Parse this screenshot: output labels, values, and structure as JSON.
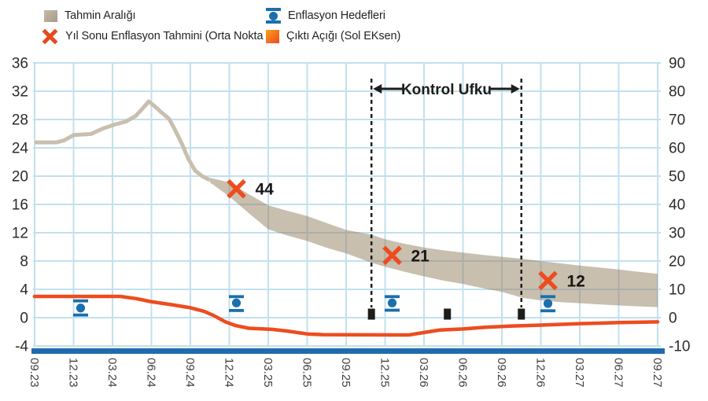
{
  "legend": {
    "items": [
      {
        "id": "forecast-range",
        "label": "Tahmin Aralığı"
      },
      {
        "id": "inflation-targets",
        "label": "Enflasyon Hedefleri"
      },
      {
        "id": "year-end-forecast",
        "label": "Yıl Sonu Enflasyon Tahmini (Orta Nokta"
      },
      {
        "id": "output-gap",
        "label": "Çıktı Açığı (Sol EKsen)"
      }
    ]
  },
  "colors": {
    "band": "#c9bfae",
    "orange": "#ee4c1e",
    "blue": "#1b6fad",
    "grid": "#c2e0ee",
    "grid_over_band": "#8b9aa4",
    "bottom_axis": "#1e6cae",
    "black": "#1d1d1b",
    "tick_text": "#403f3e",
    "axis_text": "#2c2b2a"
  },
  "chart_data": {
    "type": "area",
    "title": "",
    "grid": true,
    "legend_position": "top",
    "x_labels": [
      "09.23",
      "12.23",
      "03.24",
      "06.24",
      "09.24",
      "12.24",
      "03.25",
      "06.25",
      "09.25",
      "12.25",
      "03.26",
      "06.26",
      "09.26",
      "12.26",
      "03.27",
      "06.27",
      "09.27"
    ],
    "left_axis": {
      "ticks": [
        36,
        32,
        28,
        24,
        20,
        16,
        12,
        8,
        4,
        0,
        -4
      ],
      "min": -4,
      "max": 36
    },
    "right_axis": {
      "ticks": [
        90,
        80,
        70,
        60,
        50,
        40,
        30,
        20,
        10,
        0,
        -10
      ],
      "min": -10,
      "max": 90
    },
    "control_horizon": {
      "label": "Kontrol Ufku",
      "from_x_index": 8.65,
      "to_x_index": 12.5
    },
    "series": [
      {
        "name": "Tahmin Aralığı",
        "kind": "band",
        "axis": "right",
        "line_points": [
          [
            0,
            61.9
          ],
          [
            0.55,
            61.9
          ],
          [
            0.75,
            62.6
          ],
          [
            1,
            64.5
          ],
          [
            1.45,
            64.9
          ],
          [
            1.75,
            66.8
          ],
          [
            2.05,
            68.2
          ],
          [
            2.35,
            69.3
          ],
          [
            2.6,
            71.3
          ],
          [
            2.78,
            74.0
          ],
          [
            2.93,
            76.4
          ],
          [
            3.1,
            74.5
          ],
          [
            3.25,
            72.6
          ],
          [
            3.45,
            70.3
          ],
          [
            3.6,
            66.5
          ],
          [
            3.78,
            61.5
          ],
          [
            3.95,
            56.0
          ],
          [
            4.12,
            52.0
          ],
          [
            4.3,
            50.0
          ],
          [
            4.5,
            48.6
          ]
        ],
        "band_points": [
          [
            4.5,
            49.4,
            47.8
          ],
          [
            5,
            47.8,
            42.8
          ],
          [
            5.5,
            43.6,
            36.9
          ],
          [
            6,
            39.7,
            31.2
          ],
          [
            6.5,
            37.7,
            29.0
          ],
          [
            7,
            35.9,
            27.1
          ],
          [
            7.5,
            33.4,
            24.7
          ],
          [
            8,
            31.0,
            22.7
          ],
          [
            8.65,
            29.3,
            19.4
          ],
          [
            9,
            27.7,
            18.0
          ],
          [
            9.5,
            26.1,
            16.2
          ],
          [
            10,
            24.8,
            14.6
          ],
          [
            10.5,
            23.8,
            13.1
          ],
          [
            11,
            23.0,
            11.9
          ],
          [
            11.5,
            22.2,
            10.4
          ],
          [
            12,
            21.5,
            9.1
          ],
          [
            12.53,
            20.8,
            7.0
          ],
          [
            13,
            20.0,
            6.1
          ],
          [
            13.5,
            19.2,
            5.5
          ],
          [
            14,
            18.4,
            5.1
          ],
          [
            14.5,
            17.7,
            4.7
          ],
          [
            15,
            17.0,
            4.3
          ],
          [
            15.5,
            16.2,
            4.0
          ],
          [
            16,
            15.5,
            3.7
          ]
        ]
      },
      {
        "name": "Yıl Sonu Enflasyon Tahmini (Orta Nokta",
        "kind": "scatter-x",
        "axis": "right",
        "points": [
          {
            "x_label": "12.24",
            "x": 5,
            "value": 44,
            "plot_value": 45.5
          },
          {
            "x_label": "12.25",
            "x": 9,
            "value": 21,
            "plot_value": 22.0
          },
          {
            "x_label": "12.26",
            "x": 13,
            "value": 12,
            "plot_value": 13.1
          }
        ]
      },
      {
        "name": "Enflasyon Hedefleri",
        "kind": "scatter-dot-band",
        "axis": "right",
        "points": [
          {
            "x_label": "12.23",
            "x": 1,
            "value": 3.4,
            "upper": 5.9,
            "lower": 0.9
          },
          {
            "x_label": "12.24",
            "x": 5,
            "value": 5.2,
            "upper": 7.4,
            "lower": 2.5
          },
          {
            "x_label": "12.25",
            "x": 9,
            "value": 5.2,
            "upper": 7.4,
            "lower": 2.6
          },
          {
            "x_label": "12.26",
            "x": 13,
            "value": 5.0,
            "upper": 7.4,
            "lower": 2.4
          }
        ]
      },
      {
        "name": "Çıktı Açığı (Sol EKsen)",
        "kind": "line",
        "axis": "left",
        "points": [
          [
            0,
            3.0
          ],
          [
            2.2,
            3.0
          ],
          [
            2.6,
            2.7
          ],
          [
            3,
            2.25
          ],
          [
            3.5,
            1.85
          ],
          [
            4,
            1.4
          ],
          [
            4.35,
            0.9
          ],
          [
            4.6,
            0.3
          ],
          [
            4.9,
            -0.6
          ],
          [
            5.15,
            -1.1
          ],
          [
            5.5,
            -1.5
          ],
          [
            6.1,
            -1.65
          ],
          [
            6.5,
            -1.9
          ],
          [
            7,
            -2.3
          ],
          [
            7.4,
            -2.4
          ],
          [
            9.6,
            -2.45
          ],
          [
            10,
            -2.1
          ],
          [
            10.4,
            -1.75
          ],
          [
            11,
            -1.6
          ],
          [
            11.6,
            -1.35
          ],
          [
            12.2,
            -1.2
          ],
          [
            13,
            -1.05
          ],
          [
            14,
            -0.85
          ],
          [
            15,
            -0.7
          ],
          [
            16,
            -0.6
          ]
        ]
      },
      {
        "name": "unlabeled-black-markers",
        "kind": "scatter-square",
        "axis": "left",
        "points": [
          [
            8.65,
            0.5
          ],
          [
            10.6,
            0.5
          ],
          [
            12.5,
            0.5
          ]
        ]
      }
    ]
  }
}
